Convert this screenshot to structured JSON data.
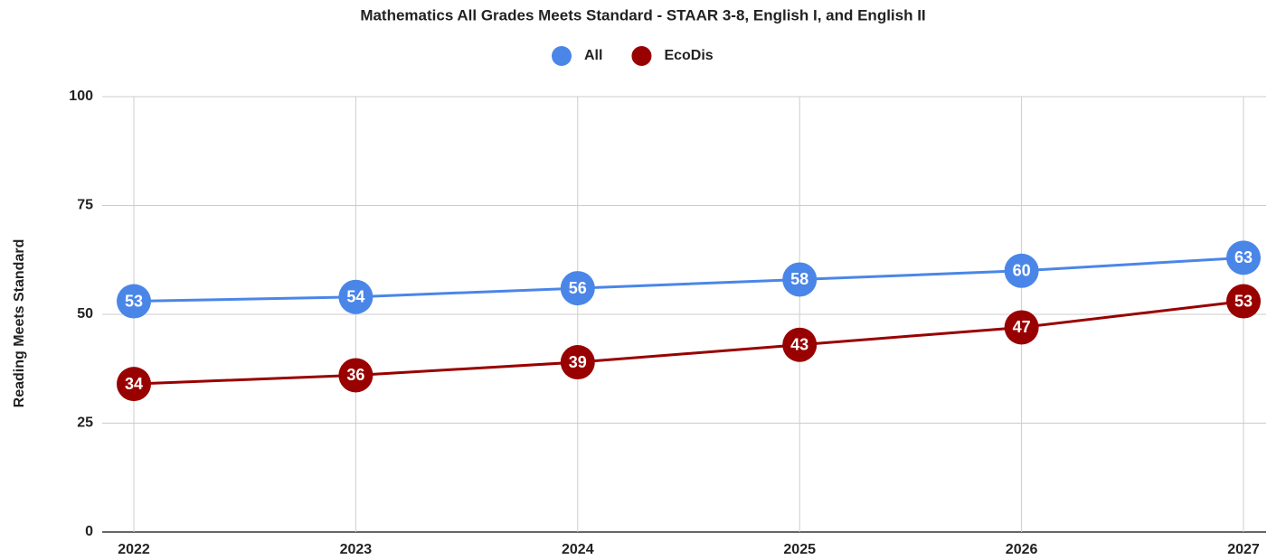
{
  "chart_data": {
    "type": "line",
    "title": "Mathematics All Grades Meets Standard - STAAR 3-8, English I, and English II",
    "y_label": "Reading Meets Standard",
    "categories": [
      "2022",
      "2023",
      "2024",
      "2025",
      "2026",
      "2027"
    ],
    "series": [
      {
        "name": "All",
        "color": "#4a86e8",
        "values": [
          53,
          54,
          56,
          58,
          60,
          63
        ]
      },
      {
        "name": "EcoDis",
        "color": "#990000",
        "values": [
          34,
          36,
          39,
          43,
          47,
          53
        ]
      }
    ],
    "ylim": [
      0,
      100
    ],
    "yticks": [
      0,
      25,
      50,
      75,
      100
    ],
    "grid": true,
    "legend": "top"
  }
}
